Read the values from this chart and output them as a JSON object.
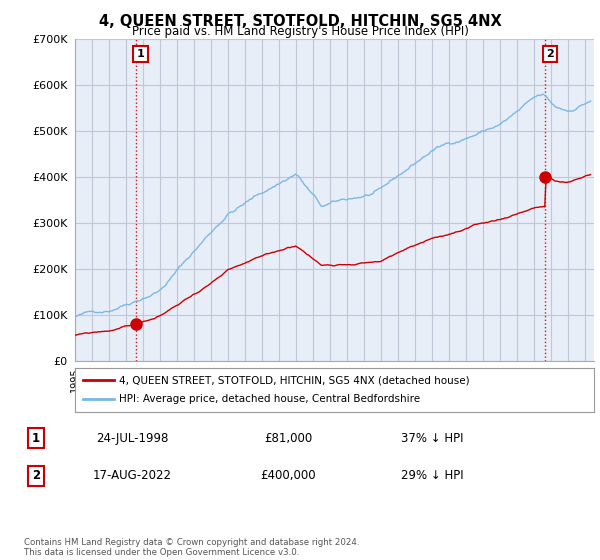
{
  "title": "4, QUEEN STREET, STOTFOLD, HITCHIN, SG5 4NX",
  "subtitle": "Price paid vs. HM Land Registry's House Price Index (HPI)",
  "ylim": [
    0,
    700000
  ],
  "xlim_start": 1995.0,
  "xlim_end": 2025.5,
  "hpi_color": "#7ab8e8",
  "price_color": "#cc0000",
  "bg_color": "#e8eef8",
  "sale1_x": 1998.56,
  "sale1_y": 81000,
  "sale2_x": 2022.62,
  "sale2_y": 400000,
  "legend_label_price": "4, QUEEN STREET, STOTFOLD, HITCHIN, SG5 4NX (detached house)",
  "legend_label_hpi": "HPI: Average price, detached house, Central Bedfordshire",
  "table_row1_num": "1",
  "table_row1_date": "24-JUL-1998",
  "table_row1_price": "£81,000",
  "table_row1_hpi": "37% ↓ HPI",
  "table_row2_num": "2",
  "table_row2_date": "17-AUG-2022",
  "table_row2_price": "£400,000",
  "table_row2_hpi": "29% ↓ HPI",
  "footnote": "Contains HM Land Registry data © Crown copyright and database right 2024.\nThis data is licensed under the Open Government Licence v3.0.",
  "white_color": "#ffffff",
  "grid_color": "#c0c8d8"
}
